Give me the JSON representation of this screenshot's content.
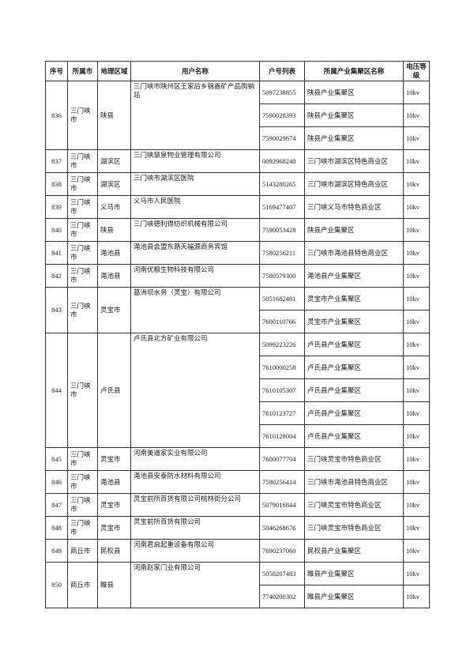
{
  "table": {
    "headers": [
      "序号",
      "所属市",
      "地理区域",
      "用户名称",
      "户号列表",
      "所属产业集聚区名称",
      "电压等级"
    ],
    "rows": [
      {
        "seq": "836",
        "city": "三门峡市",
        "region": "陕县",
        "user": "三门峡市陕州区王家后乡锦鑫矿产品购销站",
        "accounts": [
          {
            "no": "5097238855",
            "cluster": "陕县产业集聚区",
            "voltage": "10kv"
          },
          {
            "no": "7590028393",
            "cluster": "陕县产业集聚区",
            "voltage": "10kv"
          },
          {
            "no": "7590029674",
            "cluster": "陕县产业集聚区",
            "voltage": "10kv"
          }
        ]
      },
      {
        "seq": "837",
        "city": "三门峡市",
        "region": "湖滨区",
        "user": "三门峡慧泉物业管理有限公司",
        "accounts": [
          {
            "no": "0092968240",
            "cluster": "三门峡市湖滨区特色商业区",
            "voltage": "10kv"
          }
        ]
      },
      {
        "seq": "838",
        "city": "三门峡市",
        "region": "湖滨区",
        "user": "三门峡市湖滨区医院",
        "accounts": [
          {
            "no": "5143280265",
            "cluster": "三门峡市湖滨区特色商业区",
            "voltage": "10kv"
          }
        ]
      },
      {
        "seq": "839",
        "city": "三门峡市",
        "region": "义马市",
        "user": "义马市人民医院",
        "accounts": [
          {
            "no": "5169477407",
            "cluster": "三门峡义马市特色商业区",
            "voltage": "10kv"
          }
        ]
      },
      {
        "seq": "840",
        "city": "三门峡市",
        "region": "陕县",
        "user": "三门峡德利得纺织机械有限公司",
        "accounts": [
          {
            "no": "7590053428",
            "cluster": "陕县产业集聚区",
            "voltage": "10kv"
          }
        ]
      },
      {
        "seq": "841",
        "city": "三门峡市",
        "region": "渑池县",
        "user": "渑池县会盟东路天福源商务宾馆",
        "accounts": [
          {
            "no": "7580256211",
            "cluster": "三门峡市渑池县特色商业区",
            "voltage": "10kv"
          }
        ]
      },
      {
        "seq": "842",
        "city": "三门峡市",
        "region": "渑池县",
        "user": "河南优粮生物科技有限公司",
        "accounts": [
          {
            "no": "7580579300",
            "cluster": "渑池县产业集聚区",
            "voltage": "10kv"
          }
        ]
      },
      {
        "seq": "843",
        "city": "三门峡市",
        "region": "灵宝市",
        "user": "葛洲坝水务（灵宝）有限公司",
        "accounts": [
          {
            "no": "5051682481",
            "cluster": "灵宝市产业集聚区",
            "voltage": "10kv"
          },
          {
            "no": "7600110766",
            "cluster": "灵宝市产业集聚区",
            "voltage": "10kv"
          }
        ]
      },
      {
        "seq": "844",
        "city": "三门峡市",
        "region": "卢氏县",
        "user": "卢氏县北方矿业有限公司",
        "accounts": [
          {
            "no": "5099223226",
            "cluster": "卢氏县产业集聚区",
            "voltage": "10kv"
          },
          {
            "no": "7610000258",
            "cluster": "卢氏县产业集聚区",
            "voltage": "10kv"
          },
          {
            "no": "7610105307",
            "cluster": "卢氏县产业集聚区",
            "voltage": "10kv"
          },
          {
            "no": "7610123727",
            "cluster": "卢氏县产业集聚区",
            "voltage": "10kv"
          },
          {
            "no": "7610128004",
            "cluster": "卢氏县产业集聚区",
            "voltage": "10kv"
          }
        ]
      },
      {
        "seq": "845",
        "city": "三门峡市",
        "region": "灵宝市",
        "user": "河南美道家实业有限公司",
        "accounts": [
          {
            "no": "7600077704",
            "cluster": "三门峡灵宝市特色商业区",
            "voltage": "10kv"
          }
        ]
      },
      {
        "seq": "846",
        "city": "三门峡市",
        "region": "渑池县",
        "user": "渑池县安泰防水材料有限公司",
        "accounts": [
          {
            "no": "7580256414",
            "cluster": "三门峡市渑池县特色商业区",
            "voltage": "10kv"
          }
        ]
      },
      {
        "seq": "847",
        "city": "三门峡市",
        "region": "灵宝市",
        "user": "灵宝前所百货有限公司桃林街分公司",
        "accounts": [
          {
            "no": "5079016844",
            "cluster": "三门峡灵宝市特色商业区",
            "voltage": "10kv"
          }
        ]
      },
      {
        "seq": "848",
        "city": "三门峡市",
        "region": "灵宝市",
        "user": "灵宝前所百货有限公司",
        "accounts": [
          {
            "no": "5046268676",
            "cluster": "三门峡灵宝市特色商业区",
            "voltage": "10kv"
          }
        ]
      },
      {
        "seq": "849",
        "city": "商丘市",
        "region": "民权县",
        "user": "河南君启起重设备有限公司",
        "accounts": [
          {
            "no": "7690237060",
            "cluster": "民权县产业集聚区",
            "voltage": "10kv"
          }
        ]
      },
      {
        "seq": "850",
        "city": "商丘市",
        "region": "睢县",
        "user": "河南赵家门业有限公司",
        "accounts": [
          {
            "no": "5058207483",
            "cluster": "睢县产业集聚区",
            "voltage": "10kv"
          },
          {
            "no": "7740200302",
            "cluster": "睢县产业集聚区",
            "voltage": "10kv"
          }
        ]
      }
    ]
  }
}
